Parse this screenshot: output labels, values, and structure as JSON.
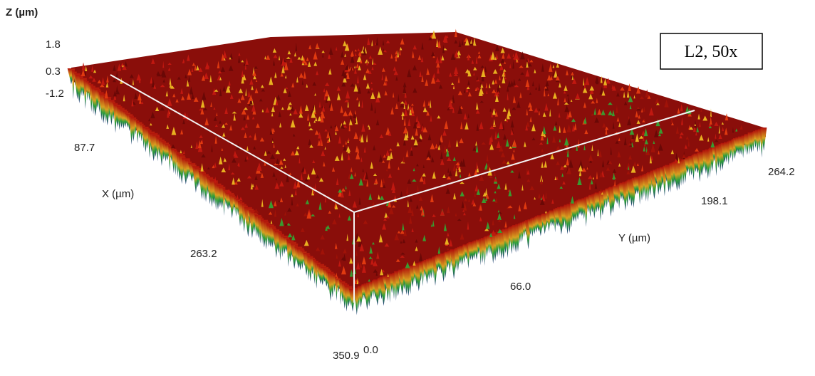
{
  "z_axis": {
    "label": "Z (µm)",
    "ticks": [
      "1.8",
      "0.3",
      "-1.2"
    ]
  },
  "x_axis": {
    "label": "X (µm)",
    "ticks": [
      "87.7",
      "263.2",
      "350.9"
    ]
  },
  "y_axis": {
    "label": "Y (µm)",
    "ticks": [
      "0.0",
      "66.0",
      "198.1",
      "264.2"
    ]
  },
  "annotation": "L2, 50x"
}
